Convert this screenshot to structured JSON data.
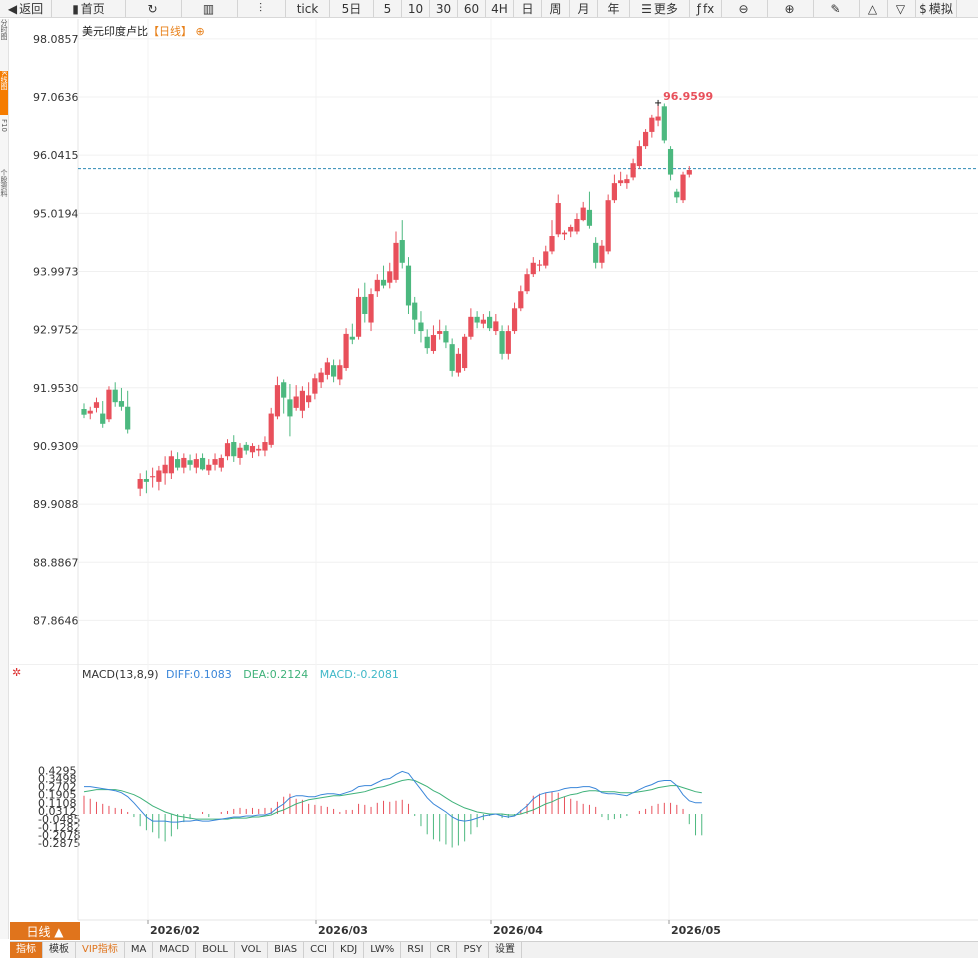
{
  "toolbar": [
    {
      "label": "返回",
      "icon": "back-icon"
    },
    {
      "label": "首页",
      "icon": "home-icon"
    },
    {
      "label": "",
      "icon": "refresh-icon"
    },
    {
      "label": "",
      "icon": "bar-chart-icon"
    },
    {
      "label": "",
      "icon": "candlestick-icon"
    },
    {
      "label": "tick",
      "icon": ""
    },
    {
      "label": "5日",
      "icon": ""
    },
    {
      "label": "5",
      "icon": ""
    },
    {
      "label": "10",
      "icon": ""
    },
    {
      "label": "30",
      "icon": ""
    },
    {
      "label": "60",
      "icon": ""
    },
    {
      "label": "4H",
      "icon": ""
    },
    {
      "label": "日",
      "icon": ""
    },
    {
      "label": "周",
      "icon": ""
    },
    {
      "label": "月",
      "icon": ""
    },
    {
      "label": "年",
      "icon": ""
    },
    {
      "label": "更多",
      "icon": "menu-icon"
    },
    {
      "label": "fx",
      "icon": "function-icon"
    },
    {
      "label": "",
      "icon": "zoom-out-icon"
    },
    {
      "label": "",
      "icon": "zoom-in-icon"
    },
    {
      "label": "",
      "icon": "pen-icon"
    },
    {
      "label": "",
      "icon": "triangle-up-icon"
    },
    {
      "label": "",
      "icon": "triangle-down-icon"
    },
    {
      "label": "模拟",
      "icon": "dollar-icon"
    }
  ],
  "sidebar": {
    "tabs": [
      {
        "label": "分时图",
        "active": false
      },
      {
        "label": "K线图",
        "active": true
      },
      {
        "label": "F10",
        "active": false
      },
      {
        "label": "个股资料",
        "active": false
      }
    ]
  },
  "header": {
    "symbol": "美元印度卢比",
    "period": "【日线】",
    "add_icon": "⊕"
  },
  "colors": {
    "up": "#e8505b",
    "down": "#4cb87f",
    "diff": "#3a86d9",
    "dea": "#3fb27a",
    "dashed": "#2e8ab5"
  },
  "chart_data": [
    {
      "type": "candlestick",
      "title": "美元印度卢比【日线】",
      "y_ticks": [
        "98.0857",
        "97.0636",
        "96.0415",
        "95.0194",
        "93.9973",
        "92.9752",
        "91.9530",
        "90.9309",
        "89.9088",
        "88.8867",
        "87.8646"
      ],
      "ylim": [
        87.25,
        98.3
      ],
      "x_ticks": [
        "2026/02",
        "2026/03",
        "2026/04",
        "2026/05"
      ],
      "high_annotation": "96.9599",
      "last_price": 95.805,
      "candles": [
        [
          91.58,
          91.68,
          91.42,
          91.48
        ],
        [
          91.5,
          91.62,
          91.4,
          91.55
        ],
        [
          91.6,
          91.78,
          91.52,
          91.7
        ],
        [
          91.5,
          91.72,
          91.25,
          91.32
        ],
        [
          91.4,
          91.98,
          91.35,
          91.92
        ],
        [
          91.92,
          92.05,
          91.62,
          91.7
        ],
        [
          91.72,
          91.95,
          91.55,
          91.62
        ],
        [
          91.62,
          91.9,
          91.15,
          91.22
        ],
        null,
        [
          90.18,
          90.45,
          90.05,
          90.35
        ],
        [
          90.35,
          90.5,
          90.1,
          90.3
        ],
        [
          90.38,
          90.55,
          90.2,
          90.4
        ],
        [
          90.3,
          90.58,
          90.15,
          90.5
        ],
        [
          90.45,
          90.75,
          90.25,
          90.6
        ],
        [
          90.45,
          90.85,
          90.35,
          90.75
        ],
        [
          90.7,
          90.82,
          90.5,
          90.55
        ],
        [
          90.55,
          90.8,
          90.45,
          90.72
        ],
        [
          90.68,
          90.78,
          90.5,
          90.6
        ],
        [
          90.55,
          90.8,
          90.45,
          90.7
        ],
        [
          90.72,
          90.8,
          90.5,
          90.52
        ],
        [
          90.5,
          90.7,
          90.42,
          90.6
        ],
        [
          90.6,
          90.8,
          90.5,
          90.7
        ],
        [
          90.55,
          90.78,
          90.48,
          90.72
        ],
        [
          90.75,
          91.05,
          90.68,
          90.98
        ],
        [
          91.0,
          91.12,
          90.65,
          90.75
        ],
        [
          90.72,
          90.98,
          90.6,
          90.9
        ],
        [
          90.95,
          91.0,
          90.78,
          90.85
        ],
        [
          90.82,
          90.98,
          90.72,
          90.93
        ],
        [
          90.85,
          90.95,
          90.75,
          90.88
        ],
        [
          90.85,
          91.1,
          90.75,
          91.0
        ],
        [
          90.95,
          91.6,
          90.9,
          91.5
        ],
        [
          91.45,
          92.15,
          91.4,
          92.0
        ],
        [
          92.05,
          92.1,
          91.5,
          91.78
        ],
        [
          91.75,
          92.02,
          91.1,
          91.45
        ],
        [
          91.6,
          92.0,
          91.55,
          91.8
        ],
        [
          91.55,
          91.98,
          91.42,
          91.9
        ],
        [
          91.7,
          92.05,
          91.6,
          91.82
        ],
        [
          91.85,
          92.2,
          91.75,
          92.12
        ],
        [
          92.05,
          92.3,
          91.95,
          92.22
        ],
        [
          92.18,
          92.48,
          92.1,
          92.4
        ],
        [
          92.35,
          92.45,
          92.05,
          92.15
        ],
        [
          92.1,
          92.45,
          92.0,
          92.35
        ],
        [
          92.3,
          93.0,
          92.25,
          92.9
        ],
        [
          92.85,
          93.08,
          92.72,
          92.8
        ],
        [
          92.85,
          93.7,
          92.8,
          93.55
        ],
        [
          93.55,
          93.8,
          93.1,
          93.25
        ],
        [
          93.1,
          93.7,
          92.95,
          93.6
        ],
        [
          93.65,
          93.95,
          93.55,
          93.85
        ],
        [
          93.85,
          94.1,
          93.7,
          93.75
        ],
        [
          93.8,
          94.15,
          93.7,
          94.0
        ],
        [
          93.85,
          94.7,
          93.8,
          94.5
        ],
        [
          94.55,
          94.9,
          94.05,
          94.15
        ],
        [
          94.1,
          94.25,
          93.25,
          93.4
        ],
        [
          93.45,
          93.55,
          92.9,
          93.15
        ],
        [
          93.1,
          93.3,
          92.75,
          92.95
        ],
        [
          92.85,
          92.98,
          92.55,
          92.65
        ],
        [
          92.6,
          93.05,
          92.55,
          92.88
        ],
        [
          92.9,
          93.15,
          92.8,
          92.95
        ],
        [
          92.95,
          93.05,
          92.65,
          92.75
        ],
        [
          92.72,
          92.82,
          92.15,
          92.25
        ],
        [
          92.22,
          92.65,
          92.15,
          92.55
        ],
        [
          92.3,
          92.9,
          92.25,
          92.85
        ],
        [
          92.85,
          93.35,
          92.8,
          93.2
        ],
        [
          93.2,
          93.3,
          93.0,
          93.1
        ],
        [
          93.08,
          93.25,
          93.0,
          93.15
        ],
        [
          93.2,
          93.3,
          92.95,
          93.0
        ],
        [
          92.95,
          93.25,
          92.88,
          93.12
        ],
        [
          92.95,
          93.05,
          92.45,
          92.55
        ],
        [
          92.55,
          93.05,
          92.45,
          92.95
        ],
        [
          92.95,
          93.45,
          92.9,
          93.35
        ],
        [
          93.35,
          93.75,
          93.3,
          93.65
        ],
        [
          93.65,
          94.05,
          93.6,
          93.95
        ],
        [
          93.95,
          94.25,
          93.9,
          94.15
        ],
        [
          94.1,
          94.2,
          94.0,
          94.12
        ],
        [
          94.1,
          94.45,
          94.05,
          94.35
        ],
        [
          94.35,
          94.9,
          94.3,
          94.62
        ],
        [
          94.65,
          95.35,
          94.6,
          95.2
        ],
        [
          94.65,
          94.72,
          94.55,
          94.68
        ],
        [
          94.7,
          94.82,
          94.6,
          94.78
        ],
        [
          94.7,
          95.02,
          94.65,
          94.92
        ],
        [
          94.9,
          95.22,
          94.88,
          95.12
        ],
        [
          95.08,
          95.4,
          94.75,
          94.8
        ],
        [
          94.5,
          94.6,
          94.05,
          94.15
        ],
        [
          94.15,
          94.55,
          94.05,
          94.45
        ],
        [
          94.35,
          95.35,
          94.3,
          95.25
        ],
        [
          95.25,
          95.7,
          95.2,
          95.55
        ],
        [
          95.55,
          95.75,
          95.5,
          95.6
        ],
        [
          95.55,
          95.7,
          95.45,
          95.62
        ],
        [
          95.65,
          95.98,
          95.6,
          95.9
        ],
        [
          95.85,
          96.3,
          95.8,
          96.2
        ],
        [
          96.2,
          96.5,
          96.15,
          96.45
        ],
        [
          96.45,
          96.75,
          96.35,
          96.7
        ],
        [
          96.65,
          96.96,
          96.55,
          96.72
        ],
        [
          96.9,
          96.95,
          96.25,
          96.3
        ],
        [
          96.15,
          96.2,
          95.6,
          95.7
        ],
        [
          95.4,
          95.45,
          95.2,
          95.3
        ],
        [
          95.25,
          95.75,
          95.2,
          95.7
        ],
        [
          95.7,
          95.85,
          95.65,
          95.78
        ]
      ]
    },
    {
      "type": "macd",
      "legend": {
        "name": "MACD(13,8,9)",
        "diff": "DIFF:0.1083",
        "dea": "DEA:0.2124",
        "macd": "MACD:-0.2081"
      },
      "y_ticks": [
        "0.4295",
        "0.3498",
        "0.2702",
        "0.1905",
        "0.1108",
        "0.0312",
        "-0.0485",
        "-0.1282",
        "-0.2078",
        "-0.2875"
      ],
      "ylim": [
        -0.36,
        0.47
      ],
      "diff": [
        0.27,
        0.27,
        0.26,
        0.25,
        0.24,
        0.23,
        0.21,
        0.17,
        0.11,
        0.04,
        -0.03,
        -0.07,
        -0.07,
        -0.07,
        -0.08,
        -0.08,
        -0.07,
        -0.07,
        -0.06,
        -0.07,
        -0.07,
        -0.06,
        -0.05,
        -0.04,
        -0.03,
        -0.03,
        -0.02,
        -0.02,
        -0.01,
        -0.01,
        0.01,
        0.06,
        0.1,
        0.16,
        0.18,
        0.18,
        0.17,
        0.17,
        0.19,
        0.2,
        0.2,
        0.19,
        0.21,
        0.23,
        0.27,
        0.28,
        0.28,
        0.31,
        0.34,
        0.35,
        0.39,
        0.42,
        0.4,
        0.32,
        0.24,
        0.16,
        0.1,
        0.06,
        0.02,
        -0.03,
        -0.06,
        -0.07,
        -0.06,
        -0.04,
        -0.02,
        -0.01,
        0.0,
        -0.02,
        -0.03,
        -0.02,
        0.03,
        0.08,
        0.15,
        0.19,
        0.21,
        0.22,
        0.23,
        0.25,
        0.26,
        0.26,
        0.27,
        0.27,
        0.25,
        0.21,
        0.2,
        0.2,
        0.19,
        0.18,
        0.21,
        0.24,
        0.27,
        0.29,
        0.32,
        0.33,
        0.33,
        0.28,
        0.19,
        0.13,
        0.11,
        0.11
      ],
      "dea": [
        0.22,
        0.23,
        0.24,
        0.24,
        0.24,
        0.24,
        0.23,
        0.21,
        0.19,
        0.16,
        0.12,
        0.08,
        0.05,
        0.02,
        0.0,
        -0.02,
        -0.03,
        -0.04,
        -0.05,
        -0.05,
        -0.05,
        -0.05,
        -0.05,
        -0.05,
        -0.04,
        -0.04,
        -0.04,
        -0.03,
        -0.03,
        -0.02,
        -0.01,
        0.02,
        0.04,
        0.07,
        0.1,
        0.12,
        0.14,
        0.15,
        0.16,
        0.17,
        0.18,
        0.18,
        0.19,
        0.2,
        0.21,
        0.22,
        0.24,
        0.26,
        0.27,
        0.29,
        0.31,
        0.33,
        0.34,
        0.33,
        0.3,
        0.27,
        0.23,
        0.2,
        0.16,
        0.12,
        0.09,
        0.06,
        0.04,
        0.02,
        0.01,
        0.0,
        0.0,
        0.0,
        -0.01,
        -0.01,
        0.0,
        0.02,
        0.04,
        0.07,
        0.1,
        0.12,
        0.15,
        0.17,
        0.19,
        0.2,
        0.22,
        0.23,
        0.23,
        0.22,
        0.22,
        0.22,
        0.21,
        0.21,
        0.21,
        0.22,
        0.23,
        0.24,
        0.26,
        0.27,
        0.28,
        0.28,
        0.26,
        0.24,
        0.22,
        0.21
      ],
      "macd": [
        0.18,
        0.15,
        0.12,
        0.1,
        0.08,
        0.06,
        0.05,
        0.02,
        -0.03,
        -0.12,
        -0.16,
        -0.18,
        -0.24,
        -0.27,
        -0.22,
        -0.15,
        -0.08,
        -0.05,
        0.0,
        0.02,
        -0.03,
        0.0,
        0.02,
        0.03,
        0.05,
        0.06,
        0.05,
        0.06,
        0.05,
        0.06,
        0.06,
        0.12,
        0.17,
        0.2,
        0.15,
        0.14,
        0.1,
        0.09,
        0.08,
        0.07,
        0.05,
        0.02,
        0.04,
        0.04,
        0.1,
        0.09,
        0.07,
        0.11,
        0.13,
        0.12,
        0.13,
        0.14,
        0.1,
        -0.02,
        -0.12,
        -0.2,
        -0.25,
        -0.27,
        -0.3,
        -0.33,
        -0.31,
        -0.27,
        -0.2,
        -0.13,
        -0.06,
        -0.02,
        0.0,
        -0.04,
        -0.04,
        -0.02,
        0.04,
        0.1,
        0.18,
        0.2,
        0.21,
        0.22,
        0.21,
        0.17,
        0.15,
        0.13,
        0.1,
        0.09,
        0.07,
        -0.03,
        -0.06,
        -0.05,
        -0.04,
        -0.02,
        0.0,
        0.03,
        0.05,
        0.08,
        0.1,
        0.11,
        0.11,
        0.09,
        0.05,
        -0.1,
        -0.21,
        -0.21
      ]
    }
  ],
  "period_select": {
    "label": "日线 ▲"
  },
  "indicator_tabs": [
    {
      "label": "指标",
      "active": true,
      "vip": false
    },
    {
      "label": "模板",
      "active": false,
      "vip": false
    },
    {
      "label": "VIP指标",
      "active": false,
      "vip": true
    },
    {
      "label": "MA",
      "active": false,
      "vip": false
    },
    {
      "label": "MACD",
      "active": false,
      "vip": false
    },
    {
      "label": "BOLL",
      "active": false,
      "vip": false
    },
    {
      "label": "VOL",
      "active": false,
      "vip": false
    },
    {
      "label": "BIAS",
      "active": false,
      "vip": false
    },
    {
      "label": "CCI",
      "active": false,
      "vip": false
    },
    {
      "label": "KDJ",
      "active": false,
      "vip": false
    },
    {
      "label": "LW%",
      "active": false,
      "vip": false
    },
    {
      "label": "RSI",
      "active": false,
      "vip": false
    },
    {
      "label": "CR",
      "active": false,
      "vip": false
    },
    {
      "label": "PSY",
      "active": false,
      "vip": false
    },
    {
      "label": "设置",
      "active": false,
      "vip": false
    }
  ]
}
